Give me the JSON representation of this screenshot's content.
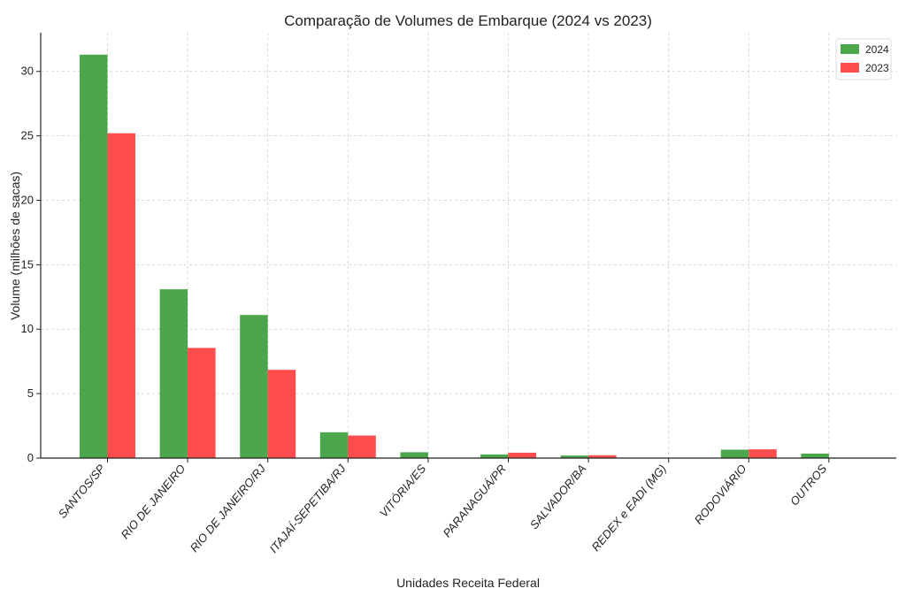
{
  "chart_data": {
    "type": "bar",
    "title": "Comparação de Volumes de Embarque (2024 vs 2023)",
    "xlabel": "Unidades Receita Federal",
    "ylabel": "Volume (milhões de sacas)",
    "ylim": [
      0,
      33
    ],
    "yticks": [
      "0",
      "5",
      "10",
      "15",
      "20",
      "25",
      "30"
    ],
    "grid": true,
    "legend_position": "top-right",
    "categories": [
      "SANTOS/SP",
      "RIO DE JANEIRO",
      "RIO DE JANEIRO/RJ",
      "ITAJAÍ-SEPETIBA/RJ",
      "VITÓRIA/ES",
      "PARANAGUÁ/PR",
      "SALVADOR/BA",
      "REDEX e EADI (MG)",
      "RODOVIÁRIO",
      "OUTROS"
    ],
    "series": [
      {
        "name": "2024",
        "color": "#4ca64c",
        "values": [
          31.3,
          13.1,
          11.1,
          2.0,
          0.45,
          0.28,
          0.2,
          0.0,
          0.65,
          0.35
        ]
      },
      {
        "name": "2023",
        "color": "#ff4c4c",
        "values": [
          25.2,
          8.55,
          6.85,
          1.75,
          0.0,
          0.42,
          0.22,
          0.0,
          0.68,
          0.0
        ]
      }
    ]
  }
}
